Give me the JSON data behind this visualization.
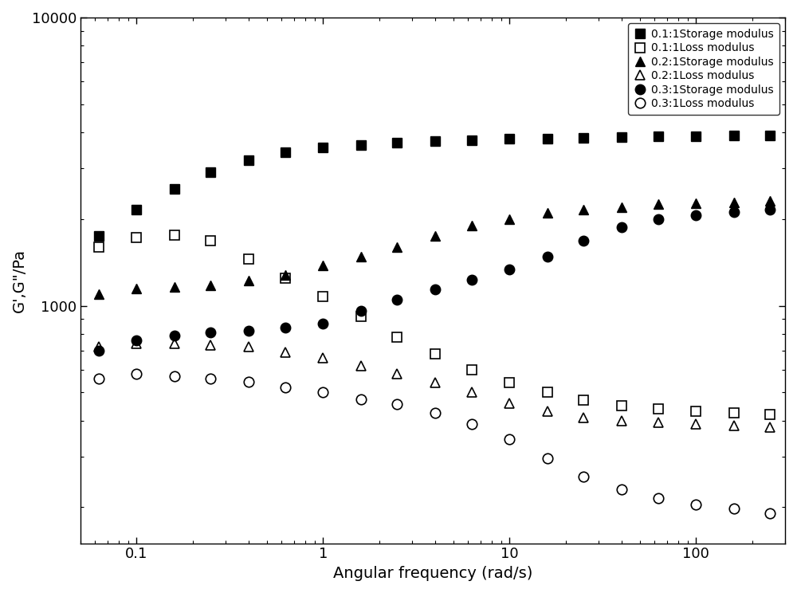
{
  "series": [
    {
      "label": "0.1:1Storage modulus",
      "marker": "s",
      "filled": true,
      "x": [
        0.063,
        0.1,
        0.16,
        0.25,
        0.4,
        0.63,
        1.0,
        1.6,
        2.5,
        4.0,
        6.3,
        10,
        16,
        25,
        40,
        63,
        100,
        160,
        250
      ],
      "y": [
        1750,
        2150,
        2550,
        2900,
        3200,
        3400,
        3550,
        3620,
        3680,
        3730,
        3760,
        3790,
        3810,
        3830,
        3860,
        3870,
        3880,
        3890,
        3900
      ]
    },
    {
      "label": "0.1:1Loss modulus",
      "marker": "s",
      "filled": false,
      "x": [
        0.063,
        0.1,
        0.16,
        0.25,
        0.4,
        0.63,
        1.0,
        1.6,
        2.5,
        4.0,
        6.3,
        10,
        16,
        25,
        40,
        63,
        100,
        160,
        250
      ],
      "y": [
        1600,
        1720,
        1760,
        1680,
        1450,
        1250,
        1080,
        920,
        780,
        680,
        600,
        540,
        500,
        470,
        450,
        440,
        430,
        425,
        420
      ]
    },
    {
      "label": "0.2:1Storage modulus",
      "marker": "^",
      "filled": true,
      "x": [
        0.063,
        0.1,
        0.16,
        0.25,
        0.4,
        0.63,
        1.0,
        1.6,
        2.5,
        4.0,
        6.3,
        10,
        16,
        25,
        40,
        63,
        100,
        160,
        250
      ],
      "y": [
        1100,
        1150,
        1160,
        1180,
        1220,
        1280,
        1380,
        1480,
        1600,
        1750,
        1900,
        2000,
        2100,
        2150,
        2200,
        2250,
        2270,
        2290,
        2310
      ]
    },
    {
      "label": "0.2:1Loss modulus",
      "marker": "^",
      "filled": false,
      "x": [
        0.063,
        0.1,
        0.16,
        0.25,
        0.4,
        0.63,
        1.0,
        1.6,
        2.5,
        4.0,
        6.3,
        10,
        16,
        25,
        40,
        63,
        100,
        160,
        250
      ],
      "y": [
        720,
        740,
        740,
        730,
        720,
        690,
        660,
        620,
        580,
        540,
        500,
        460,
        430,
        410,
        400,
        395,
        388,
        383,
        380
      ]
    },
    {
      "label": "0.3:1Storage modulus",
      "marker": "o",
      "filled": true,
      "x": [
        0.063,
        0.1,
        0.16,
        0.25,
        0.4,
        0.63,
        1.0,
        1.6,
        2.5,
        4.0,
        6.3,
        10,
        16,
        25,
        40,
        63,
        100,
        160,
        250
      ],
      "y": [
        700,
        760,
        790,
        810,
        820,
        840,
        870,
        960,
        1050,
        1140,
        1230,
        1340,
        1480,
        1680,
        1870,
        2000,
        2060,
        2110,
        2150
      ]
    },
    {
      "label": "0.3:1Loss modulus",
      "marker": "o",
      "filled": false,
      "x": [
        0.063,
        0.1,
        0.16,
        0.25,
        0.4,
        0.63,
        1.0,
        1.6,
        2.5,
        4.0,
        6.3,
        10,
        16,
        25,
        40,
        63,
        100,
        160,
        250
      ],
      "y": [
        560,
        580,
        570,
        560,
        545,
        520,
        500,
        475,
        455,
        425,
        390,
        345,
        295,
        255,
        230,
        215,
        205,
        198,
        190
      ]
    }
  ],
  "xlabel": "Angular frequency (rad/s)",
  "ylabel": "G',G\"/Pa",
  "xlim": [
    0.05,
    300
  ],
  "ylim": [
    150,
    10000
  ],
  "yticks": [
    1000,
    10000
  ],
  "ytick_labels": [
    "1000",
    "10000"
  ],
  "xticks": [
    0.1,
    1,
    10,
    100
  ],
  "xtick_labels": [
    "0.1",
    "1",
    "10",
    "100"
  ],
  "background_color": "#ffffff",
  "legend_loc": "upper right",
  "marker_size": 9,
  "fontsize": 14,
  "tick_fontsize": 13
}
